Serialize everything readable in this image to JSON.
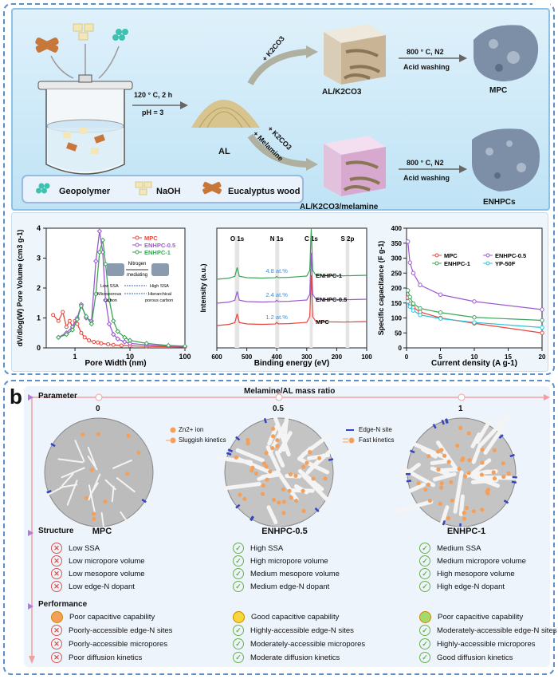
{
  "panel_a": {
    "letter": "a",
    "schematic": {
      "condition1_line1": "120 ° C, 2 h",
      "condition1_line2": "pH = 3",
      "al_label": "AL",
      "upper_reagent": "+ K2CO3",
      "lower_reagent_1": "+ K2CO3",
      "lower_reagent_2": "+ Melamine",
      "upper_mid_label": "AL/K2CO3",
      "lower_mid_label": "AL/K2CO3/melamine",
      "upper_cond_1": "800 ° C, N2",
      "upper_cond_2": "Acid washing",
      "lower_cond_1": "800 ° C, N2",
      "lower_cond_2": "Acid washing",
      "upper_product": "MPC",
      "lower_product": "ENHPCs",
      "legend": [
        "Geopolymer",
        "NaOH",
        "Eucalyptus wood"
      ]
    },
    "chart1_inset": {
      "nitrogen": "Nitrogen",
      "mediating": "mediating",
      "left1": "Low SSA",
      "left2": "Microporous",
      "left3": "carbon",
      "right1": "High SSA",
      "right2": "Hierarchical",
      "right3": "porous carbon"
    }
  },
  "chart_data": [
    {
      "type": "line",
      "xlabel": "Pore Width (nm)",
      "ylabel": "dV/dlog(W) Pore Volume (cm3 g-1)",
      "xscale": "log",
      "xlim": [
        0.3,
        100
      ],
      "ylim": [
        0,
        4
      ],
      "xticks": [
        "1",
        "10",
        "100"
      ],
      "yticks": [
        "0",
        "1",
        "2",
        "3",
        "4"
      ],
      "legend": "top-right",
      "series": [
        {
          "name": "MPC",
          "color": "#e8453c",
          "x": [
            0.4,
            0.5,
            0.6,
            0.7,
            0.8,
            0.9,
            1.0,
            1.1,
            1.3,
            1.5,
            1.8,
            2.2,
            2.6,
            3.0,
            4,
            5,
            7,
            10,
            20,
            50,
            100
          ],
          "y": [
            1.1,
            0.9,
            1.2,
            0.7,
            0.9,
            0.7,
            0.9,
            0.8,
            0.5,
            0.35,
            0.25,
            0.2,
            0.18,
            0.15,
            0.12,
            0.1,
            0.08,
            0.07,
            0.05,
            0.04,
            0.03
          ]
        },
        {
          "name": "ENHPC-0.5",
          "color": "#9b59d0",
          "x": [
            0.5,
            0.7,
            0.9,
            1.1,
            1.3,
            1.6,
            2.0,
            2.4,
            2.8,
            3.2,
            3.6,
            4.2,
            5,
            6,
            8,
            10,
            20,
            50,
            100
          ],
          "y": [
            0.35,
            0.5,
            0.7,
            1.0,
            1.45,
            1.0,
            0.9,
            2.9,
            3.9,
            3.2,
            1.6,
            0.8,
            0.45,
            0.3,
            0.2,
            0.15,
            0.1,
            0.06,
            0.05
          ]
        },
        {
          "name": "ENHPC-1",
          "color": "#3fa35a",
          "x": [
            0.5,
            0.7,
            0.9,
            1.1,
            1.3,
            1.6,
            2.0,
            2.4,
            2.8,
            3.2,
            3.6,
            4.2,
            5,
            6,
            8,
            10,
            20,
            50,
            100
          ],
          "y": [
            0.35,
            0.45,
            0.6,
            0.95,
            1.4,
            1.05,
            0.8,
            1.8,
            3.2,
            3.6,
            2.8,
            1.6,
            0.9,
            0.55,
            0.35,
            0.25,
            0.15,
            0.08,
            0.06
          ]
        }
      ]
    },
    {
      "type": "line",
      "xlabel": "Binding energy (eV)",
      "ylabel": "Intensity (a.u.)",
      "xlim": [
        600,
        100
      ],
      "xticks": [
        "600",
        "500",
        "400",
        "300",
        "200",
        "100"
      ],
      "peaks": [
        "O 1s",
        "N 1s",
        "C 1s",
        "S 2p"
      ],
      "series": [
        {
          "name": "ENHPC-1",
          "color": "#3fa35a",
          "annotation": "4.8 at.%"
        },
        {
          "name": "ENHPC-0.5",
          "color": "#9b59d0",
          "annotation": "2.4 at.%"
        },
        {
          "name": "MPC",
          "color": "#e8453c",
          "annotation": "1.2 at.%"
        }
      ]
    },
    {
      "type": "line",
      "xlabel": "Current density (A g-1)",
      "ylabel": "Specific capacitance (F g-1)",
      "xlim": [
        0,
        20
      ],
      "ylim": [
        0,
        400
      ],
      "xticks": [
        "0",
        "5",
        "10",
        "15",
        "20"
      ],
      "yticks": [
        "0",
        "50",
        "100",
        "150",
        "200",
        "250",
        "300",
        "350",
        "400"
      ],
      "legend": "top-right",
      "series": [
        {
          "name": "MPC",
          "color": "#e8453c",
          "x": [
            0.2,
            0.5,
            1,
            2,
            5,
            10,
            20
          ],
          "y": [
            168,
            148,
            135,
            120,
            100,
            82,
            50
          ]
        },
        {
          "name": "ENHPC-0.5",
          "color": "#9b59d0",
          "x": [
            0.2,
            0.5,
            1,
            2,
            5,
            10,
            20
          ],
          "y": [
            355,
            285,
            250,
            210,
            178,
            155,
            128
          ]
        },
        {
          "name": "ENHPC-1",
          "color": "#3fa35a",
          "x": [
            0.2,
            0.5,
            1,
            2,
            5,
            10,
            20
          ],
          "y": [
            192,
            170,
            148,
            132,
            118,
            102,
            92
          ]
        },
        {
          "name": "YP-50F",
          "color": "#2bc4d8",
          "x": [
            0.2,
            0.5,
            1,
            2,
            5,
            10,
            20
          ],
          "y": [
            155,
            138,
            125,
            110,
            98,
            85,
            68
          ]
        }
      ]
    }
  ],
  "panel_b": {
    "letter": "b",
    "parameter_label": "Parameter",
    "axis_title": "Melamine/AL mass ratio",
    "ratios": [
      "0",
      "0.5",
      "1"
    ],
    "legend_left": [
      "Zn2+ ion",
      "Sluggish kinetics"
    ],
    "legend_right": [
      "Edge-N site",
      "Fast kinetics"
    ],
    "samples": [
      "MPC",
      "ENHPC-0.5",
      "ENHPC-1"
    ],
    "structure_label": "Structure",
    "performance_label": "Performance",
    "structure": [
      [
        {
          "t": "Low SSA",
          "ok": false
        },
        {
          "t": "Low micropore volume",
          "ok": false
        },
        {
          "t": "Low mesopore volume",
          "ok": false
        },
        {
          "t": "Low edge-N dopant",
          "ok": false
        }
      ],
      [
        {
          "t": "High SSA",
          "ok": true
        },
        {
          "t": "High micropore volume",
          "ok": true
        },
        {
          "t": "Medium mesopore volume",
          "ok": true
        },
        {
          "t": "Medium edge-N dopant",
          "ok": true
        }
      ],
      [
        {
          "t": "Medium SSA",
          "ok": true
        },
        {
          "t": "Medium micropore volume",
          "ok": true
        },
        {
          "t": "High mesopore volume",
          "ok": true
        },
        {
          "t": "High edge-N dopant",
          "ok": true
        }
      ]
    ],
    "performance": [
      [
        {
          "t": "Poor capacitive capability",
          "face": "#f4a05a"
        },
        {
          "t": "Poorly-accessible edge-N sites",
          "ok": false
        },
        {
          "t": "Poorly-accessible micropores",
          "ok": false
        },
        {
          "t": "Poor diffusion kinetics",
          "ok": false
        }
      ],
      [
        {
          "t": "Good capacitive capability",
          "face": "#f7d63a"
        },
        {
          "t": "Highly-accessible edge-N sites",
          "ok": true
        },
        {
          "t": "Moderately-accessible micropores",
          "ok": true
        },
        {
          "t": "Moderate diffusion kinetics",
          "ok": true
        }
      ],
      [
        {
          "t": "Poor capacitive capability",
          "face": "#a6d96a"
        },
        {
          "t": "Moderately-accessible edge-N sites",
          "ok": true
        },
        {
          "t": "Highly-accessible micropores",
          "ok": true
        },
        {
          "t": "Good diffusion kinetics",
          "ok": true
        }
      ]
    ]
  }
}
